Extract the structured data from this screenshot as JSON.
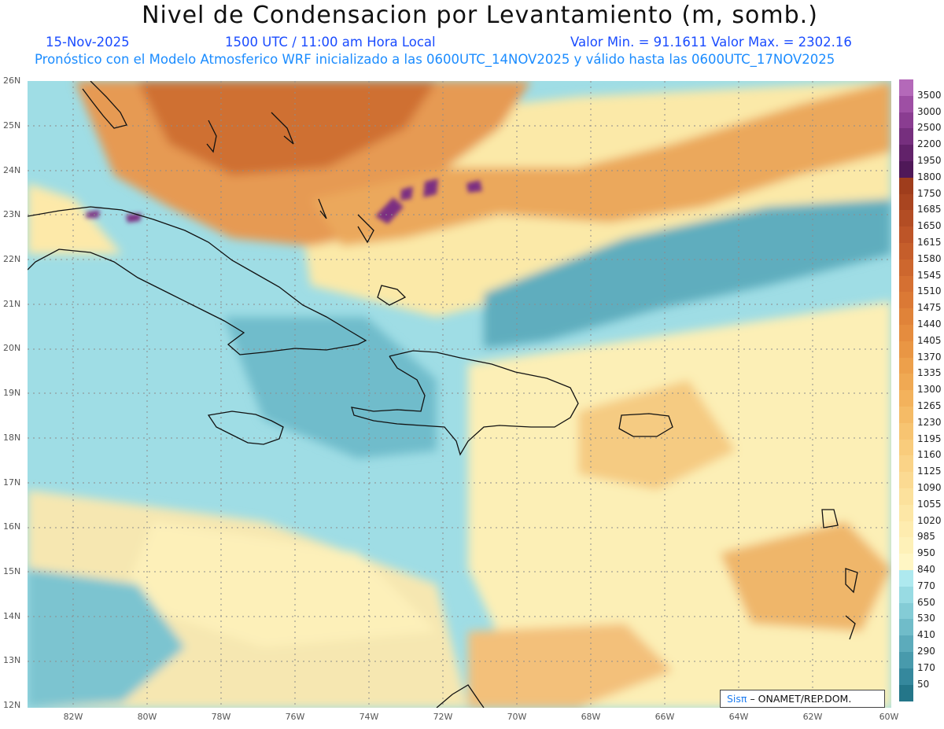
{
  "title": "Nivel de Condensacion por Levantamiento (m, somb.)",
  "date": "15-Nov-2025",
  "time": "1500 UTC / 11:00 am Hora Local",
  "minmax": "Valor Min. = 91.1611  Valor Max. = 2302.16",
  "forecast": "Pronóstico con el Modelo Atmosferico WRF inicializado a las 0600UTC_14NOV2025 y válido hasta las  0600UTC_17NOV2025",
  "lat_labels": [
    "26N",
    "25N",
    "24N",
    "23N",
    "22N",
    "21N",
    "20N",
    "19N",
    "18N",
    "17N",
    "16N",
    "15N",
    "14N",
    "13N",
    "12N"
  ],
  "lon_labels": [
    "82W",
    "80W",
    "78W",
    "76W",
    "74W",
    "72W",
    "70W",
    "68W",
    "66W",
    "64W",
    "62W",
    "60W"
  ],
  "colorbar": [
    {
      "label": "3500",
      "color": "#b469b9"
    },
    {
      "label": "3000",
      "color": "#9e4fa4"
    },
    {
      "label": "2500",
      "color": "#8a3d91"
    },
    {
      "label": "2200",
      "color": "#762f7e"
    },
    {
      "label": "1950",
      "color": "#62226a"
    },
    {
      "label": "1800",
      "color": "#4f1858"
    },
    {
      "label": "1750",
      "color": "#9f3d1c"
    },
    {
      "label": "1685",
      "color": "#a94520"
    },
    {
      "label": "1650",
      "color": "#b34d24"
    },
    {
      "label": "1615",
      "color": "#bd5528"
    },
    {
      "label": "1580",
      "color": "#c55e2b"
    },
    {
      "label": "1545",
      "color": "#cd672e"
    },
    {
      "label": "1510",
      "color": "#d57032"
    },
    {
      "label": "1475",
      "color": "#db7935"
    },
    {
      "label": "1440",
      "color": "#e08339"
    },
    {
      "label": "1405",
      "color": "#e58c3e"
    },
    {
      "label": "1370",
      "color": "#e99644"
    },
    {
      "label": "1335",
      "color": "#eda04b"
    },
    {
      "label": "1300",
      "color": "#f0a953"
    },
    {
      "label": "1265",
      "color": "#f3b25c"
    },
    {
      "label": "1230",
      "color": "#f5bb66"
    },
    {
      "label": "1195",
      "color": "#f7c471"
    },
    {
      "label": "1160",
      "color": "#f9cc7c"
    },
    {
      "label": "1125",
      "color": "#fad387"
    },
    {
      "label": "1090",
      "color": "#fbda92"
    },
    {
      "label": "1055",
      "color": "#fce19c"
    },
    {
      "label": "1020",
      "color": "#fde7a6"
    },
    {
      "label": "985",
      "color": "#feecaf"
    },
    {
      "label": "950",
      "color": "#fef1b8"
    },
    {
      "label": "840",
      "color": "#fff6c4"
    },
    {
      "label": "770",
      "color": "#aee9ef"
    },
    {
      "label": "650",
      "color": "#98dbe3"
    },
    {
      "label": "530",
      "color": "#84ccd6"
    },
    {
      "label": "410",
      "color": "#70bcc9"
    },
    {
      "label": "290",
      "color": "#5cabbb"
    },
    {
      "label": "170",
      "color": "#489aac"
    },
    {
      "label": "50",
      "color": "#35889d"
    },
    {
      "label": "",
      "color": "#247689"
    }
  ],
  "credit": {
    "logo": "Sisπ",
    "text": "– ONAMET/REP.DOM."
  }
}
